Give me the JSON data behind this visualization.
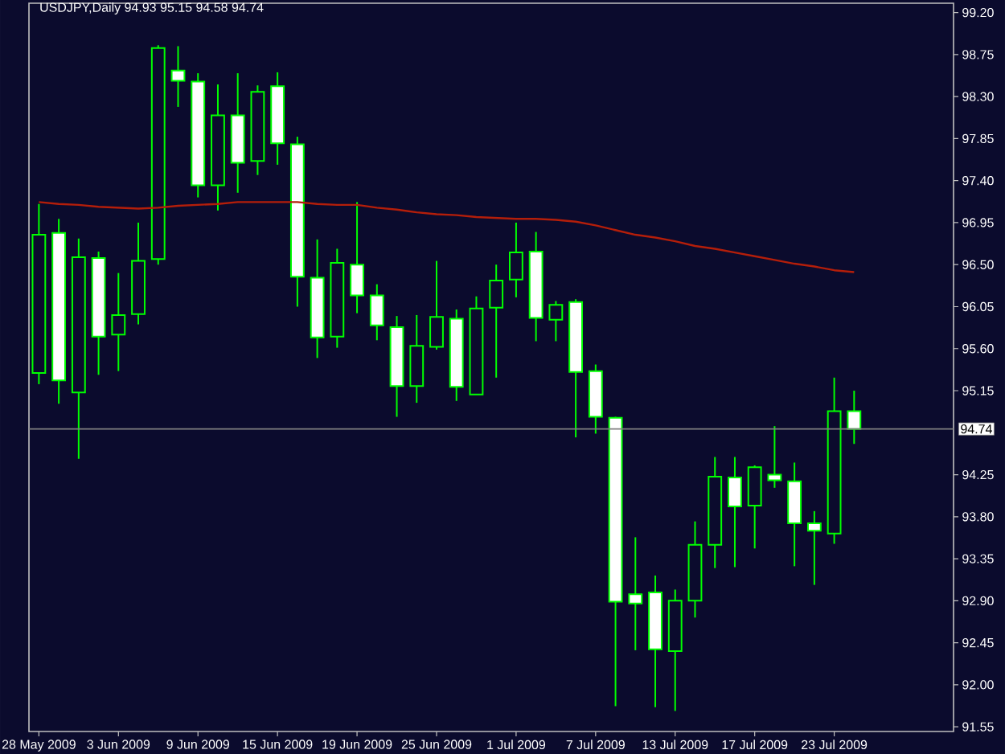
{
  "chart_data": {
    "type": "candlestick",
    "title": "USDJPY,Daily 94.93 95.15 94.58 94.74",
    "categories": [
      "28 May 2009",
      null,
      null,
      null,
      "3 Jun 2009",
      null,
      null,
      null,
      "9 Jun 2009",
      null,
      null,
      null,
      "15 Jun 2009",
      null,
      null,
      null,
      "19 Jun 2009",
      null,
      null,
      null,
      "25 Jun 2009",
      null,
      null,
      null,
      "1 Jul 2009",
      null,
      null,
      null,
      "7 Jul 2009",
      null,
      null,
      null,
      "13 Jul 2009",
      null,
      null,
      null,
      "17 Jul 2009",
      null,
      null,
      null,
      "23 Jul 2009",
      null
    ],
    "ohlc": [
      [
        95.34,
        97.15,
        95.22,
        96.82
      ],
      [
        96.84,
        96.99,
        95.01,
        95.26
      ],
      [
        95.13,
        96.78,
        94.42,
        96.58
      ],
      [
        96.57,
        96.64,
        95.32,
        95.73
      ],
      [
        95.75,
        96.41,
        95.36,
        95.96
      ],
      [
        95.97,
        96.95,
        95.86,
        96.54
      ],
      [
        96.56,
        98.85,
        96.5,
        98.82
      ],
      [
        98.58,
        98.84,
        98.19,
        98.47
      ],
      [
        98.46,
        98.55,
        97.22,
        97.35
      ],
      [
        97.35,
        98.43,
        97.08,
        98.1
      ],
      [
        98.1,
        98.55,
        97.27,
        97.59
      ],
      [
        97.61,
        98.42,
        97.46,
        98.35
      ],
      [
        98.41,
        98.56,
        97.57,
        97.8
      ],
      [
        97.79,
        97.87,
        96.05,
        96.37
      ],
      [
        96.36,
        96.77,
        95.5,
        95.72
      ],
      [
        95.73,
        96.67,
        95.61,
        96.52
      ],
      [
        96.5,
        97.17,
        95.98,
        96.17
      ],
      [
        96.17,
        96.29,
        95.69,
        95.85
      ],
      [
        95.83,
        95.95,
        94.87,
        95.2
      ],
      [
        95.2,
        95.96,
        95.02,
        95.63
      ],
      [
        95.62,
        96.54,
        95.59,
        95.94
      ],
      [
        95.92,
        96.02,
        95.04,
        95.19
      ],
      [
        95.11,
        96.16,
        95.11,
        96.03
      ],
      [
        96.04,
        96.5,
        95.29,
        96.33
      ],
      [
        96.34,
        96.95,
        96.15,
        96.63
      ],
      [
        96.64,
        96.85,
        95.68,
        95.93
      ],
      [
        95.91,
        96.11,
        95.68,
        96.07
      ],
      [
        96.1,
        96.13,
        94.65,
        95.35
      ],
      [
        95.36,
        95.43,
        94.69,
        94.87
      ],
      [
        94.86,
        94.87,
        91.77,
        92.89
      ],
      [
        92.97,
        93.58,
        92.37,
        92.87
      ],
      [
        92.99,
        93.17,
        91.76,
        92.38
      ],
      [
        92.36,
        93.02,
        91.72,
        92.9
      ],
      [
        92.9,
        93.75,
        92.72,
        93.5
      ],
      [
        93.5,
        94.44,
        93.25,
        94.23
      ],
      [
        94.22,
        94.44,
        93.26,
        93.91
      ],
      [
        93.92,
        94.35,
        93.46,
        94.33
      ],
      [
        94.25,
        94.77,
        94.11,
        94.19
      ],
      [
        94.18,
        94.38,
        93.27,
        93.73
      ],
      [
        93.73,
        93.86,
        93.07,
        93.65
      ],
      [
        93.62,
        95.29,
        93.51,
        94.93
      ],
      [
        94.93,
        95.15,
        94.58,
        94.74
      ]
    ],
    "color": "#00ff00",
    "colors": [
      "#0b0b2d",
      "#ffffff",
      "#0b0b2d",
      "#ffffff",
      "#0b0b2d",
      "#0b0b2d",
      "#0b0b2d",
      "#ffffff",
      "#ffffff",
      "#0b0b2d",
      "#ffffff",
      "#0b0b2d",
      "#ffffff",
      "#ffffff",
      "#ffffff",
      "#0b0b2d",
      "#ffffff",
      "#ffffff",
      "#ffffff",
      "#0b0b2d",
      "#0b0b2d",
      "#ffffff",
      "#0b0b2d",
      "#0b0b2d",
      "#0b0b2d",
      "#ffffff",
      "#0b0b2d",
      "#ffffff",
      "#ffffff",
      "#ffffff",
      "#ffffff",
      "#ffffff",
      "#0b0b2d",
      "#0b0b2d",
      "#0b0b2d",
      "#ffffff",
      "#0b0b2d",
      "#ffffff",
      "#ffffff",
      "#ffffff",
      "#0b0b2d",
      "#ffffff"
    ],
    "series": [
      {
        "type": "line",
        "color": "#b41e0a",
        "values": [
          97.17,
          97.15,
          97.14,
          97.12,
          97.11,
          97.1,
          97.11,
          97.13,
          97.14,
          97.15,
          97.17,
          97.17,
          97.17,
          97.17,
          97.15,
          97.14,
          97.14,
          97.11,
          97.09,
          97.06,
          97.04,
          97.03,
          97.01,
          97.0,
          96.99,
          96.99,
          96.98,
          96.96,
          96.92,
          96.87,
          96.82,
          96.79,
          96.75,
          96.7,
          96.67,
          96.63,
          96.59,
          96.55,
          96.51,
          96.48,
          96.44,
          96.42
        ]
      }
    ],
    "ylim": [
      91.5,
      99.3
    ],
    "yticks": [
      {
        "value": 99.2,
        "label": "99.20"
      },
      98.75,
      {
        "value": 98.3,
        "label": "98.30"
      },
      97.85,
      {
        "value": 97.4,
        "label": "97.40"
      },
      96.95,
      {
        "value": 96.5,
        "label": "96.50"
      },
      96.05,
      {
        "value": 95.6,
        "label": "95.60"
      },
      95.15,
      94.25,
      {
        "value": 93.8,
        "label": "93.80"
      },
      93.35,
      {
        "value": 92.9,
        "label": "92.90"
      },
      92.45,
      {
        "value": 92.0,
        "label": "92.00"
      },
      91.55
    ],
    "ref_lines": [
      {
        "axis": "y",
        "value": 94.74,
        "label": "94.74",
        "color": "#808080"
      }
    ]
  }
}
